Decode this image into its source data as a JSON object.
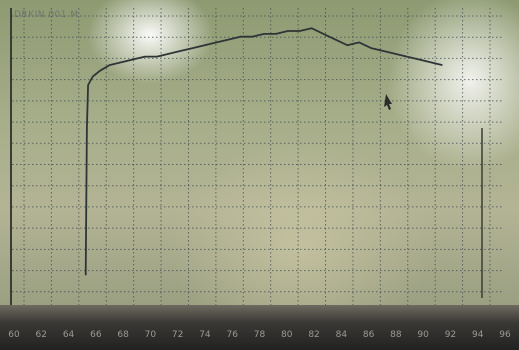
{
  "screen": {
    "header": "DRKIN 001 M"
  },
  "chart_data": {
    "type": "line",
    "xlabel": "",
    "ylabel": "",
    "grid": true,
    "x_ticks": [
      "60",
      "62",
      "64",
      "66",
      "68",
      "70",
      "72",
      "74",
      "76",
      "78",
      "80",
      "82",
      "84",
      "86",
      "88",
      "90",
      "92",
      "94",
      "96"
    ],
    "series": [
      {
        "points": [
          [
            63.0,
            8
          ],
          [
            63.1,
            60
          ],
          [
            63.2,
            75
          ],
          [
            63.6,
            78
          ],
          [
            64.2,
            80
          ],
          [
            65.0,
            82
          ],
          [
            66.0,
            83
          ],
          [
            67.0,
            84
          ],
          [
            68.0,
            85
          ],
          [
            69.0,
            85
          ],
          [
            70.0,
            86
          ],
          [
            71.0,
            87
          ],
          [
            72.0,
            88
          ],
          [
            73.0,
            89
          ],
          [
            74.0,
            90
          ],
          [
            75.0,
            91
          ],
          [
            76.0,
            92
          ],
          [
            77.0,
            92
          ],
          [
            78.0,
            93
          ],
          [
            79.0,
            93
          ],
          [
            80.0,
            94
          ],
          [
            81.0,
            94
          ],
          [
            82.0,
            95
          ],
          [
            83.0,
            93
          ],
          [
            84.0,
            91
          ],
          [
            85.0,
            89
          ],
          [
            86.0,
            90
          ],
          [
            87.0,
            88
          ],
          [
            88.0,
            87
          ],
          [
            89.0,
            86
          ],
          [
            90.0,
            85
          ],
          [
            91.0,
            84
          ],
          [
            92.0,
            83
          ],
          [
            93.0,
            82
          ]
        ]
      }
    ],
    "xlim": [
      60,
      97
    ],
    "ylim": [
      0,
      100
    ],
    "colors": {
      "line": "#2f3436",
      "grid": "#3e4a4e",
      "axis": "#3a3d35"
    }
  }
}
